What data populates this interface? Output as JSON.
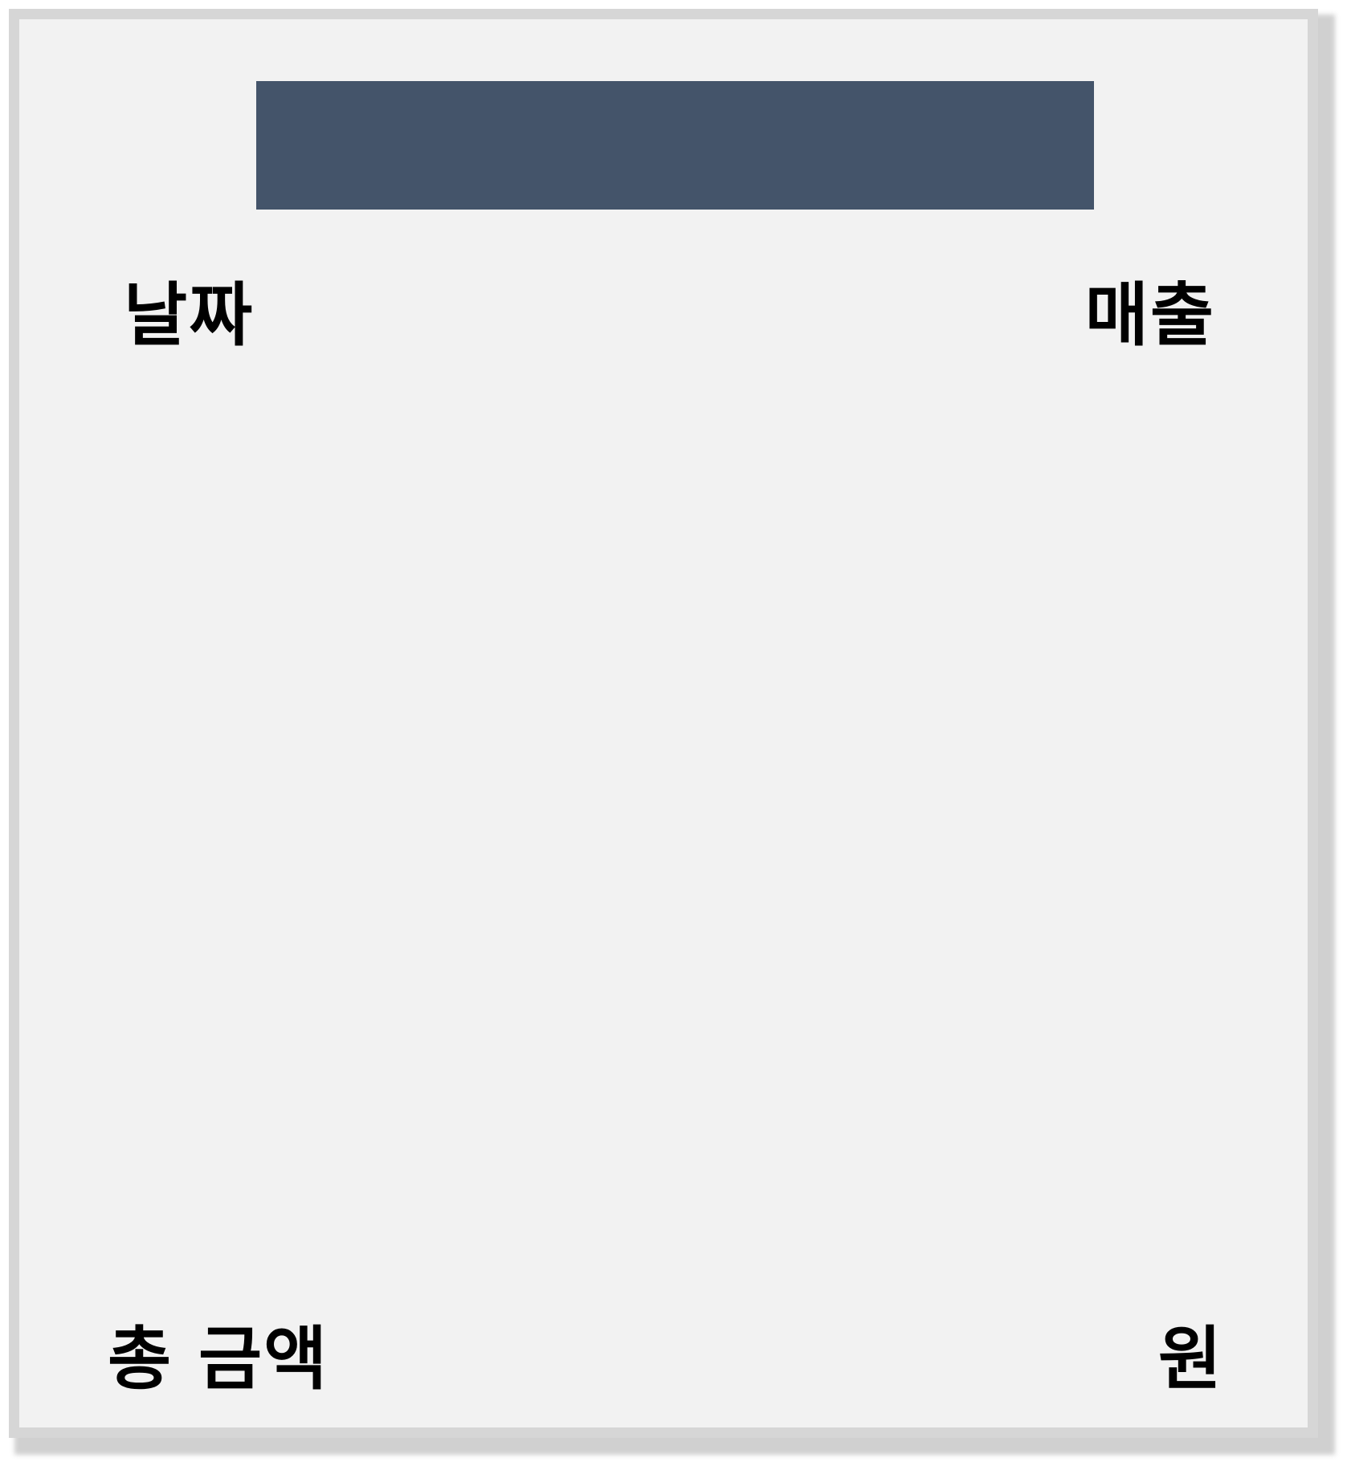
{
  "header": {
    "title_bar_color": "#44546a"
  },
  "columns": {
    "date_label": "날짜",
    "sales_label": "매출"
  },
  "footer": {
    "total_label": "총 금액",
    "currency_unit": "원"
  },
  "colors": {
    "panel_background": "#f2f2f2",
    "panel_border": "#d6d6d6",
    "text": "#000000"
  }
}
